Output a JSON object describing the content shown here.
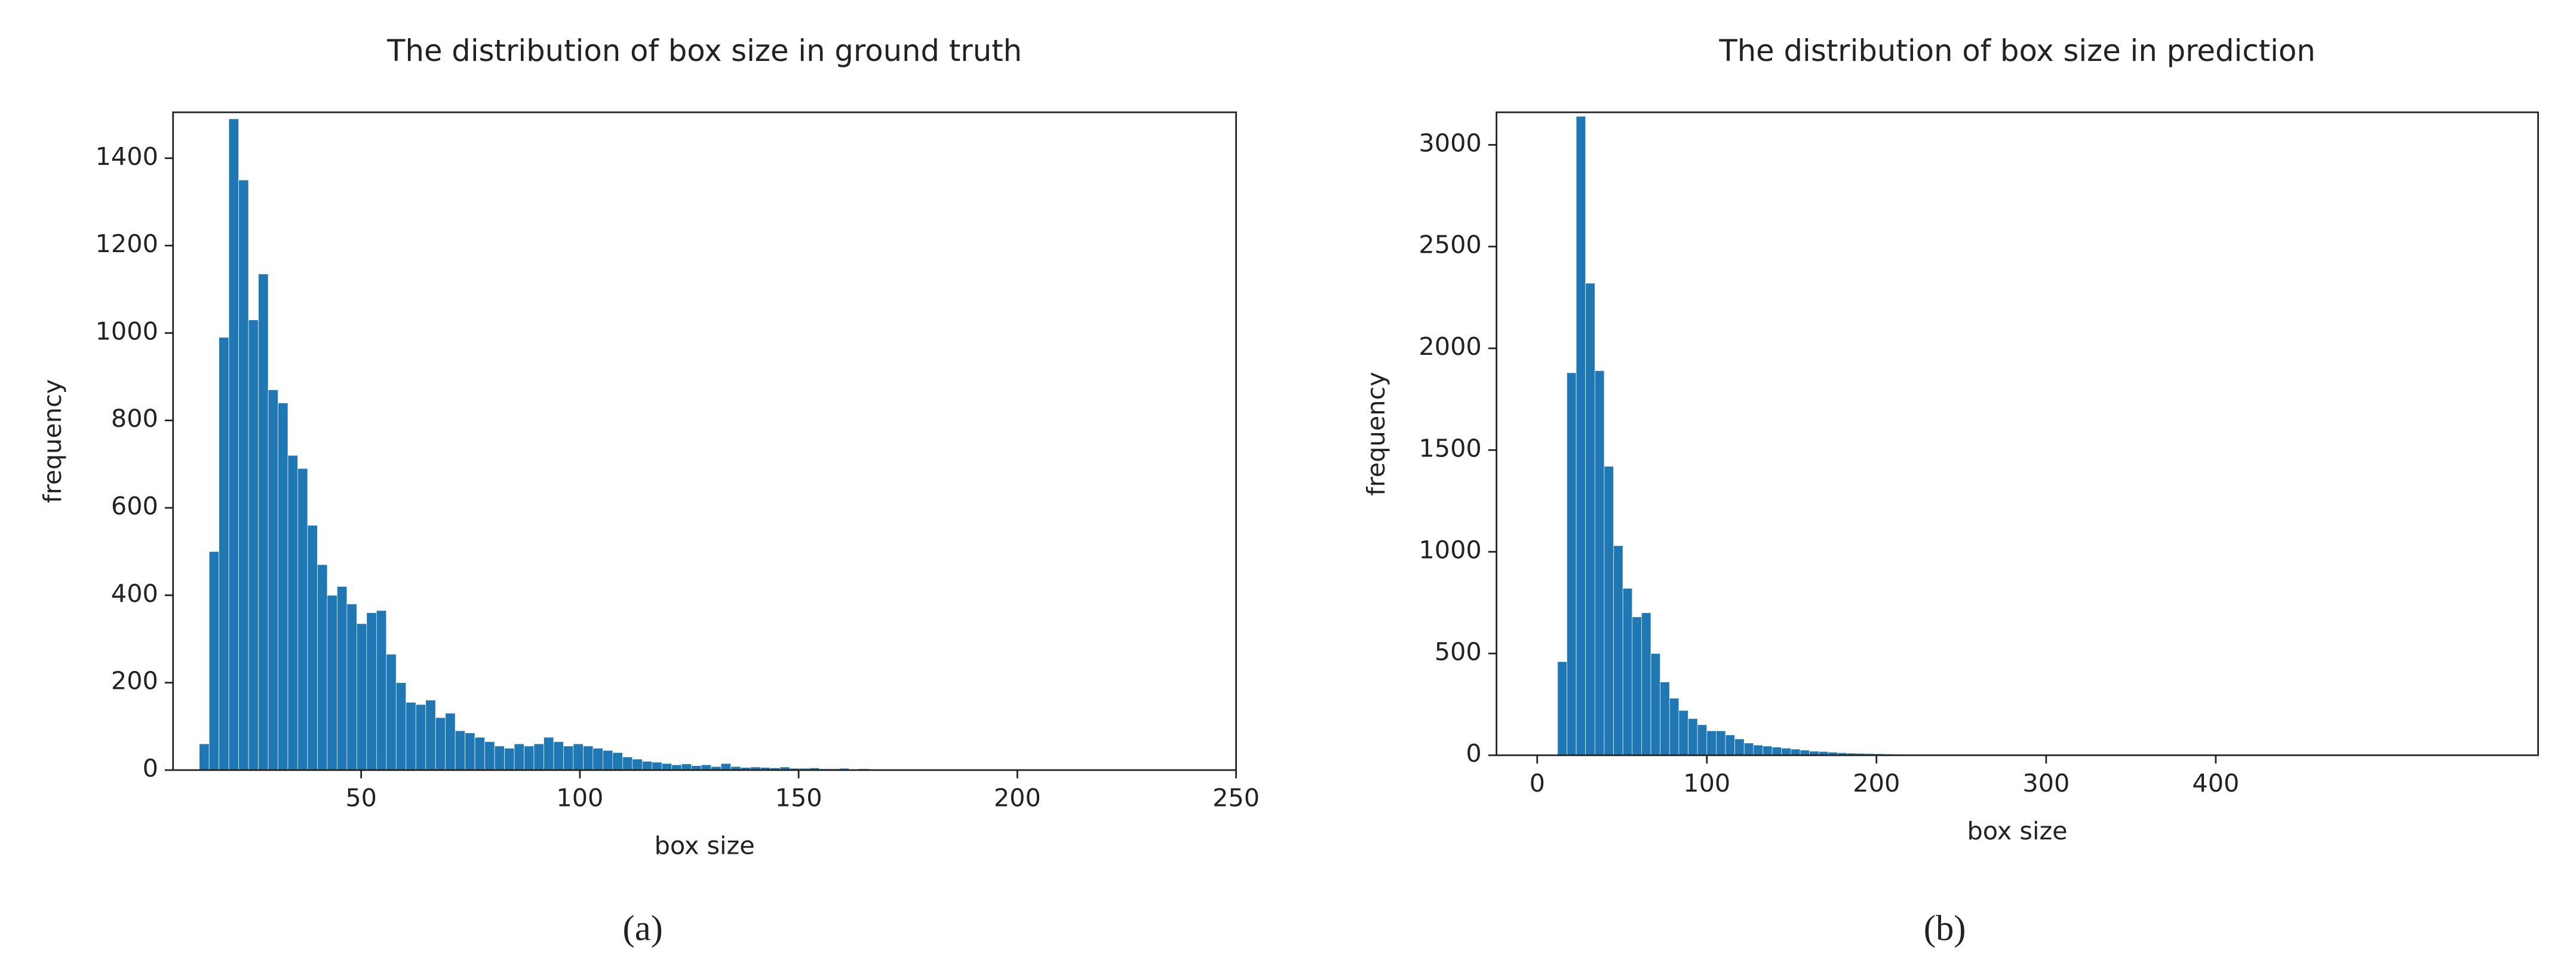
{
  "chart_data": [
    {
      "type": "histogram",
      "title": "The distribution of box size in ground truth",
      "xlabel": "box size",
      "ylabel": "frequency",
      "caption": "(a)",
      "color": "#1f77b4",
      "bins": [
        13,
        15.25,
        17.5,
        19.75,
        22,
        24.25,
        26.5,
        28.75,
        31,
        33.25,
        35.5,
        37.75,
        40,
        42.25,
        44.5,
        46.75,
        49,
        51.25,
        53.5,
        55.75,
        58,
        60.25,
        62.5,
        64.75,
        67,
        69.25,
        71.5,
        73.75,
        76,
        78.25,
        80.5,
        82.75,
        85,
        87.25,
        89.5,
        91.75,
        94,
        96.25,
        98.5,
        100.75,
        103,
        105.25,
        107.5,
        109.75,
        112,
        114.25,
        116.5,
        118.75,
        121,
        123.25,
        125.5,
        127.75,
        130,
        132.25,
        134.5,
        136.75,
        139,
        141.25,
        143.5,
        145.75,
        148,
        150.25,
        152.5,
        154.75,
        157,
        159.25,
        161.5,
        163.75,
        166,
        168.25,
        170.5,
        172.75,
        175,
        177.25,
        179.5,
        181.75,
        184,
        186.25,
        188.5,
        190.75,
        193,
        195.25,
        197.5,
        199.75,
        202,
        204.25,
        206.5,
        208.75,
        211,
        213.25,
        215.5,
        217.75,
        220,
        222.25,
        224.5,
        226.75,
        229,
        231.25,
        233.5,
        235.75,
        238
      ],
      "values": [
        60,
        500,
        990,
        1490,
        1350,
        1030,
        1135,
        870,
        840,
        720,
        690,
        560,
        470,
        400,
        420,
        380,
        335,
        360,
        365,
        265,
        200,
        155,
        150,
        160,
        120,
        130,
        90,
        85,
        75,
        65,
        55,
        50,
        60,
        55,
        60,
        75,
        65,
        55,
        60,
        55,
        50,
        45,
        40,
        30,
        25,
        20,
        18,
        15,
        12,
        14,
        10,
        12,
        8,
        15,
        8,
        6,
        7,
        6,
        5,
        7,
        4,
        4,
        5,
        3,
        3,
        4,
        2,
        3,
        2,
        2,
        2,
        2,
        1,
        2,
        1,
        1,
        1,
        2,
        1,
        1,
        1,
        1,
        1,
        0,
        1,
        1,
        0,
        1,
        0,
        1,
        1,
        0,
        0,
        1,
        0,
        1,
        0,
        0,
        1,
        1
      ],
      "xlim": [
        7,
        250
      ],
      "ylim": [
        0,
        1505
      ],
      "xticks": [
        50,
        100,
        150,
        200,
        250
      ],
      "yticks": [
        0,
        200,
        400,
        600,
        800,
        1000,
        1200,
        1400
      ]
    },
    {
      "type": "histogram",
      "title": "The distribution of box size in prediction",
      "xlabel": "box size",
      "ylabel": "frequency",
      "caption": "(b)",
      "color": "#1f77b4",
      "bins": [
        12,
        17.5,
        23,
        28.5,
        34,
        39.5,
        45,
        50.5,
        56,
        61.5,
        67,
        72.5,
        78,
        83.5,
        89,
        94.5,
        100,
        105.5,
        111,
        116.5,
        122,
        127.5,
        133,
        138.5,
        144,
        149.5,
        155,
        160.5,
        166,
        171.5,
        177,
        182.5,
        188,
        193.5,
        199,
        204.5,
        210,
        215.5,
        221,
        226.5,
        232,
        237.5,
        243,
        248.5,
        254,
        259.5,
        265,
        270.5,
        276,
        281.5,
        287,
        292.5,
        298,
        303.5,
        309,
        314.5,
        320,
        325.5,
        331,
        336.5,
        342,
        347.5,
        353,
        358.5,
        364,
        369.5,
        375,
        380.5,
        386,
        391.5,
        397,
        402.5,
        408,
        413.5,
        419,
        424.5,
        430,
        435.5,
        441,
        446.5,
        452,
        457.5,
        463,
        468.5,
        474,
        479.5,
        485,
        490.5,
        496,
        501.5,
        507,
        512.5,
        518,
        523.5,
        529,
        534.5,
        540,
        545.5,
        551,
        556.5,
        562
      ],
      "values": [
        460,
        1880,
        3140,
        2320,
        1890,
        1420,
        1030,
        820,
        680,
        700,
        500,
        360,
        280,
        220,
        180,
        150,
        120,
        120,
        100,
        80,
        60,
        50,
        45,
        40,
        35,
        30,
        25,
        20,
        18,
        15,
        12,
        10,
        9,
        8,
        7,
        6,
        5,
        4,
        4,
        3,
        3,
        2,
        2,
        2,
        1,
        1,
        1,
        1,
        1,
        1,
        1,
        0,
        1,
        0,
        1,
        0,
        0,
        1,
        0,
        0,
        1,
        0,
        0,
        0,
        1,
        0,
        0,
        0,
        0,
        1,
        0,
        0,
        0,
        0,
        0,
        0,
        1,
        0,
        0,
        0,
        0,
        0,
        0,
        1,
        0,
        0,
        0,
        0,
        0,
        0,
        0,
        0,
        0,
        0,
        0,
        0,
        0,
        0,
        0,
        1
      ],
      "xlim": [
        -24,
        590
      ],
      "ylim": [
        0,
        3160
      ],
      "xticks": [
        0,
        100,
        200,
        300,
        400
      ],
      "yticks": [
        0,
        500,
        1000,
        1500,
        2000,
        2500,
        3000
      ]
    }
  ]
}
